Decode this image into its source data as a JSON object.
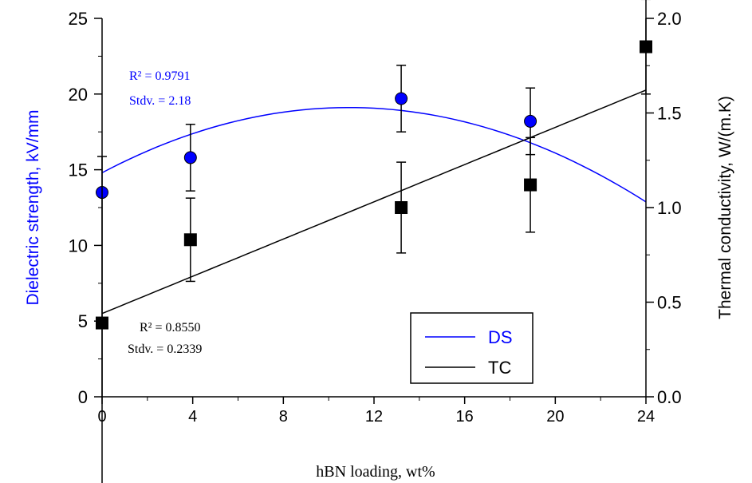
{
  "chart_data": {
    "type": "scatter",
    "xlabel": "hBN loading, wt%",
    "ylabel_left": "Dielectric strength, kV/mm",
    "ylabel_right": "Thermal conductivity, W/(m.K)",
    "xlim": [
      0,
      24
    ],
    "ylim_left": [
      0,
      25
    ],
    "ylim_right": [
      0.0,
      2.0
    ],
    "x_ticks": [
      "0",
      "4",
      "8",
      "12",
      "16",
      "20",
      "24"
    ],
    "y_left_ticks": [
      "0",
      "5",
      "10",
      "15",
      "20",
      "25"
    ],
    "y_right_ticks": [
      "0.0",
      "0.5",
      "1.0",
      "1.5",
      "2.0"
    ],
    "grid": false,
    "legend_position": "bottom-right",
    "colors": {
      "ds": "#0000ff",
      "tc": "#000000"
    },
    "series": [
      {
        "name": "DS",
        "axis": "left",
        "marker": "circle",
        "x": [
          0,
          3.9,
          13.2,
          18.9
        ],
        "y": [
          13.5,
          15.8,
          19.7,
          18.2
        ],
        "error": [
          null,
          2.2,
          2.2,
          2.2
        ],
        "fit": "quadratic",
        "fit_coefficients": [
          14.8,
          0.791,
          -0.0363
        ],
        "fit_range": [
          0,
          24
        ],
        "r2_label": "R² = 0.9791",
        "stdv_label": "Stdv. = 2.18"
      },
      {
        "name": "TC",
        "axis": "right",
        "marker": "square",
        "x": [
          0,
          3.9,
          13.2,
          18.9,
          24
        ],
        "y": [
          0.39,
          0.83,
          1.0,
          1.12,
          1.85
        ],
        "error": [
          0.88,
          0.22,
          0.24,
          0.25,
          0.25
        ],
        "fit": "linear",
        "fit_coefficients": [
          0.44,
          0.0492
        ],
        "fit_range": [
          0,
          24
        ],
        "r2_label": "R² = 0.8550",
        "stdv_label": "Stdv. = 0.2339"
      }
    ]
  }
}
